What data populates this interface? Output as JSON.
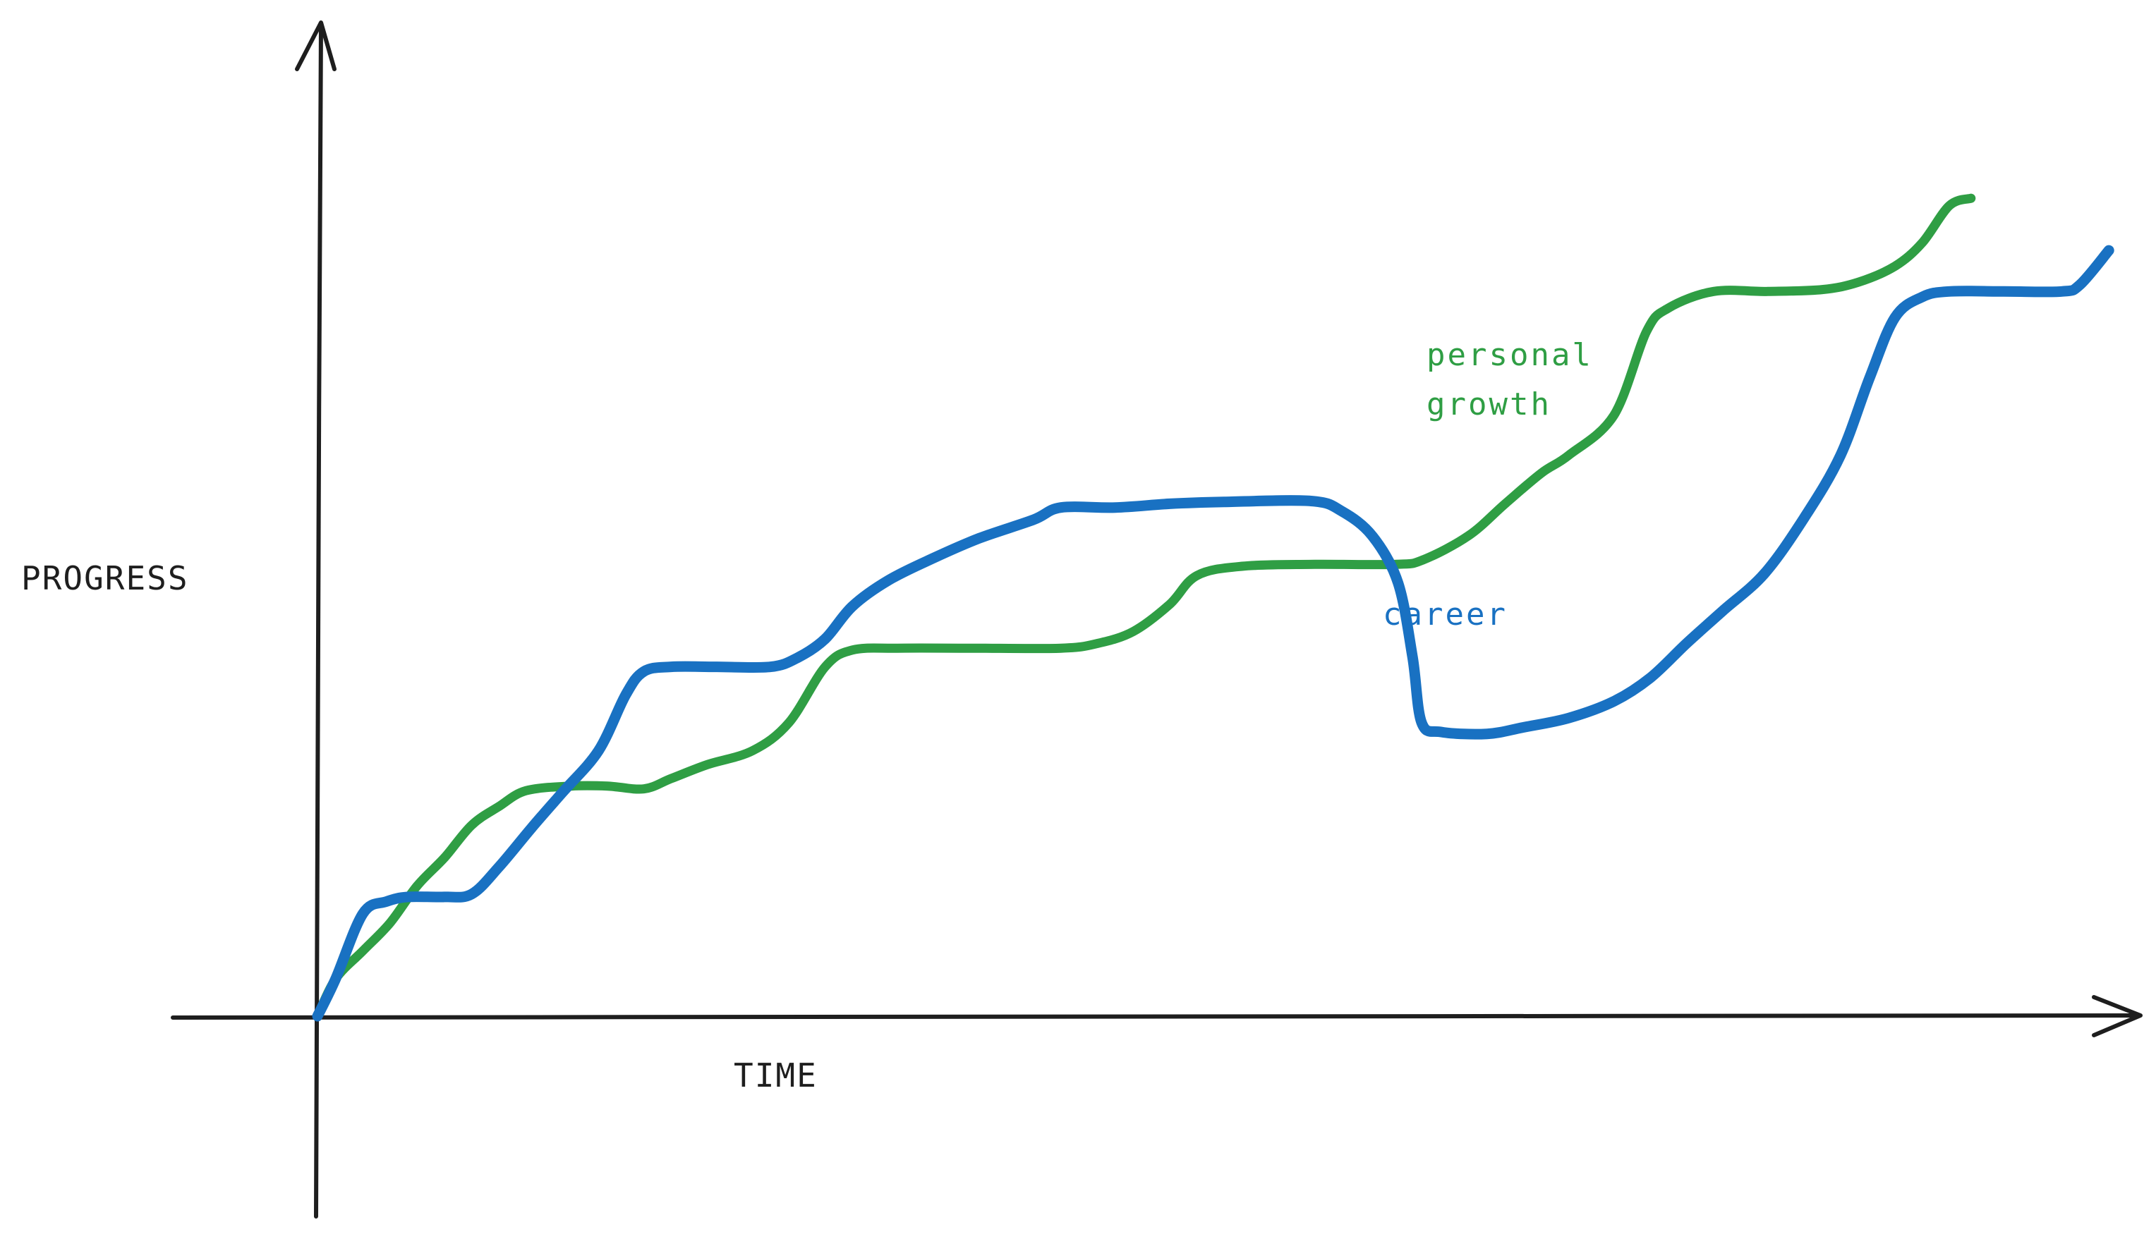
{
  "chart_data": {
    "type": "line",
    "title": "",
    "xlabel": "TIME",
    "ylabel": "PROGRESS",
    "xlim": [
      0,
      100
    ],
    "ylim": [
      0,
      100
    ],
    "grid": false,
    "legend": "inline",
    "series": [
      {
        "name": "personal growth",
        "color": "#2f9e44",
        "label_lines": [
          "personal",
          "growth"
        ],
        "points": [
          [
            0,
            0
          ],
          [
            1,
            4
          ],
          [
            2.5,
            7
          ],
          [
            4,
            10
          ],
          [
            5.5,
            14
          ],
          [
            7,
            17
          ],
          [
            8.5,
            20.5
          ],
          [
            10,
            22.5
          ],
          [
            11.5,
            24.2
          ],
          [
            14,
            24.7
          ],
          [
            16,
            24.7
          ],
          [
            18,
            24.4
          ],
          [
            19.5,
            25.5
          ],
          [
            21.5,
            27
          ],
          [
            24,
            28.5
          ],
          [
            26,
            31.5
          ],
          [
            28,
            37.5
          ],
          [
            29.5,
            39.3
          ],
          [
            32,
            39.5
          ],
          [
            36,
            39.5
          ],
          [
            41,
            39.5
          ],
          [
            43,
            40
          ],
          [
            45,
            41.3
          ],
          [
            47,
            44.2
          ],
          [
            48.5,
            47.3
          ],
          [
            51,
            48.3
          ],
          [
            55,
            48.5
          ],
          [
            59.5,
            48.5
          ],
          [
            61,
            49
          ],
          [
            63.5,
            51.6
          ],
          [
            65.5,
            55
          ],
          [
            67.5,
            58.3
          ],
          [
            69,
            60.2
          ],
          [
            71.5,
            64.5
          ],
          [
            73.3,
            73.5
          ],
          [
            74.5,
            76
          ],
          [
            77,
            77.8
          ],
          [
            80,
            77.8
          ],
          [
            83,
            78
          ],
          [
            85,
            78.8
          ],
          [
            87,
            80.5
          ],
          [
            88.5,
            83
          ],
          [
            90,
            87
          ],
          [
            91.2,
            87.8
          ]
        ]
      },
      {
        "name": "career",
        "color": "#1971c2",
        "label_lines": [
          "career"
        ],
        "points": [
          [
            0,
            0
          ],
          [
            1,
            4
          ],
          [
            2.5,
            11
          ],
          [
            3.8,
            12.3
          ],
          [
            5,
            12.8
          ],
          [
            7,
            12.8
          ],
          [
            8.5,
            13.1
          ],
          [
            10,
            16
          ],
          [
            11.8,
            20.2
          ],
          [
            13.5,
            24
          ],
          [
            15.5,
            28.5
          ],
          [
            17,
            34.5
          ],
          [
            18,
            37
          ],
          [
            19.5,
            37.5
          ],
          [
            22,
            37.5
          ],
          [
            25,
            37.5
          ],
          [
            26.5,
            38.5
          ],
          [
            28,
            40.5
          ],
          [
            29.5,
            44
          ],
          [
            31.5,
            46.8
          ],
          [
            34,
            49.2
          ],
          [
            36.5,
            51.3
          ],
          [
            39.5,
            53.3
          ],
          [
            41,
            54.6
          ],
          [
            44,
            54.6
          ],
          [
            47,
            55
          ],
          [
            50,
            55.2
          ],
          [
            54.8,
            55.3
          ],
          [
            56.5,
            54.2
          ],
          [
            58.2,
            51.5
          ],
          [
            59.6,
            46.5
          ],
          [
            60.4,
            38.5
          ],
          [
            60.9,
            31.5
          ],
          [
            62,
            30.5
          ],
          [
            64.5,
            30.3
          ],
          [
            66.5,
            31
          ],
          [
            69,
            32
          ],
          [
            71.5,
            33.8
          ],
          [
            73.5,
            36.3
          ],
          [
            75.5,
            40
          ],
          [
            77.5,
            43.5
          ],
          [
            79.8,
            47.5
          ],
          [
            82,
            53.5
          ],
          [
            84,
            60.2
          ],
          [
            85.6,
            68.5
          ],
          [
            87,
            75
          ],
          [
            88.5,
            77.2
          ],
          [
            90,
            77.8
          ],
          [
            93,
            77.8
          ],
          [
            96.2,
            77.8
          ],
          [
            97.2,
            78.5
          ],
          [
            98.8,
            82.2
          ]
        ]
      }
    ]
  }
}
